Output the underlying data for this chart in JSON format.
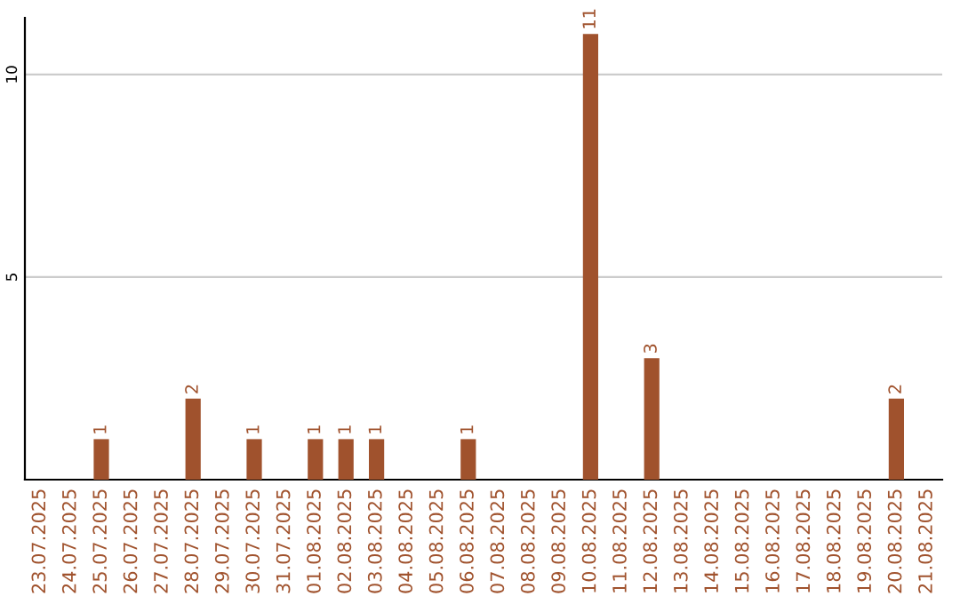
{
  "chart_data": {
    "type": "bar",
    "categories": [
      "23.07.2025",
      "24.07.2025",
      "25.07.2025",
      "26.07.2025",
      "27.07.2025",
      "28.07.2025",
      "29.07.2025",
      "30.07.2025",
      "31.07.2025",
      "01.08.2025",
      "02.08.2025",
      "03.08.2025",
      "04.08.2025",
      "05.08.2025",
      "06.08.2025",
      "07.08.2025",
      "08.08.2025",
      "09.08.2025",
      "10.08.2025",
      "11.08.2025",
      "12.08.2025",
      "13.08.2025",
      "14.08.2025",
      "15.08.2025",
      "16.08.2025",
      "17.08.2025",
      "18.08.2025",
      "19.08.2025",
      "20.08.2025",
      "21.08.2025"
    ],
    "values": [
      0,
      0,
      1,
      0,
      0,
      2,
      0,
      1,
      0,
      1,
      1,
      1,
      0,
      0,
      1,
      0,
      0,
      0,
      11,
      0,
      3,
      0,
      0,
      0,
      0,
      0,
      0,
      0,
      2,
      0
    ],
    "value_labels": [
      null,
      null,
      "1",
      null,
      null,
      "2",
      null,
      "1",
      null,
      "1",
      "1",
      "1",
      null,
      null,
      "1",
      null,
      null,
      null,
      "11",
      null,
      "3",
      null,
      null,
      null,
      null,
      null,
      null,
      null,
      "2",
      null
    ],
    "color": "#a0522d",
    "ylim": [
      0,
      11.4
    ],
    "yticks": [
      5,
      10
    ],
    "grid": "y"
  }
}
